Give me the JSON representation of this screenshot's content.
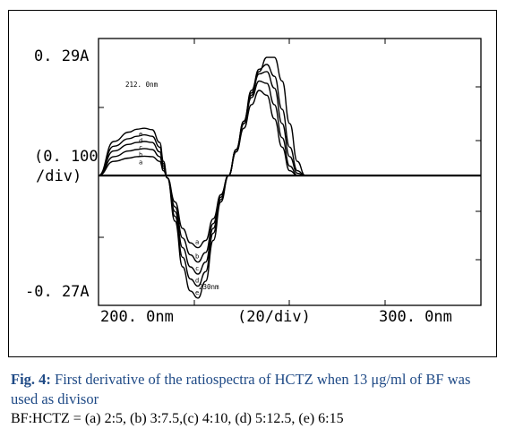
{
  "caption": {
    "fig_label": "Fig. 4:",
    "text": "First derivative of the ratiospectra of HCTZ when 13 μg/ml of BF was used as divisor",
    "ratios_line": "BF:HCTZ = (a) 2:5, (b) 3:7.5,(c) 4:10, (d) 5:12.5, (e) 6:15"
  },
  "chart_data": {
    "type": "line",
    "y_tick_labels": {
      "top": "0. 29A",
      "middle_line1": "(0. 100",
      "middle_line2": "/div)",
      "bottom": "-0. 27A"
    },
    "x_tick_labels": {
      "left": "200. 0nm",
      "middle": "(20/div)",
      "right": "300. 0nm"
    },
    "annotations": [
      "212. 0nm",
      "230nm"
    ],
    "xlim": [
      200,
      300
    ],
    "ylim": [
      -0.27,
      0.29
    ],
    "grid": false,
    "series": [
      {
        "name": "a",
        "label": "a",
        "x": [
          200,
          204,
          208,
          210,
          212,
          214,
          216,
          217,
          218,
          220,
          222,
          224,
          226,
          228,
          230,
          232,
          234,
          236,
          238,
          240,
          242,
          244,
          246,
          248,
          250,
          252,
          254,
          256,
          258,
          260,
          262,
          264,
          300
        ],
        "values": [
          0.0,
          0.03,
          0.037,
          0.04,
          0.041,
          0.04,
          0.03,
          0.01,
          -0.005,
          -0.055,
          -0.11,
          -0.14,
          -0.15,
          -0.135,
          -0.09,
          -0.04,
          0.0,
          0.05,
          0.1,
          0.15,
          0.18,
          0.17,
          0.12,
          0.06,
          0.01,
          0.0,
          0.0,
          0.0,
          0.0,
          0.0,
          0.0,
          0.0,
          0.0
        ]
      },
      {
        "name": "b",
        "label": "b",
        "x": [
          200,
          204,
          208,
          210,
          212,
          214,
          216,
          217,
          218,
          220,
          222,
          224,
          226,
          228,
          230,
          232,
          234,
          236,
          238,
          240,
          242,
          244,
          246,
          248,
          250,
          252,
          254,
          256,
          258,
          260,
          262,
          264,
          300
        ],
        "values": [
          0.0,
          0.04,
          0.052,
          0.055,
          0.057,
          0.055,
          0.04,
          0.015,
          -0.005,
          -0.065,
          -0.13,
          -0.165,
          -0.18,
          -0.16,
          -0.1,
          -0.04,
          0.0,
          0.055,
          0.11,
          0.165,
          0.2,
          0.195,
          0.15,
          0.08,
          0.02,
          0.0,
          0.0,
          0.0,
          0.0,
          0.0,
          0.0,
          0.0,
          0.0
        ]
      },
      {
        "name": "c",
        "label": "c",
        "x": [
          200,
          204,
          208,
          210,
          212,
          214,
          216,
          217,
          218,
          220,
          222,
          224,
          226,
          228,
          230,
          232,
          234,
          236,
          238,
          240,
          242,
          244,
          246,
          248,
          250,
          252,
          254,
          256,
          258,
          260,
          262,
          264,
          300
        ],
        "values": [
          0.0,
          0.052,
          0.066,
          0.07,
          0.072,
          0.07,
          0.05,
          0.02,
          -0.005,
          -0.075,
          -0.15,
          -0.19,
          -0.205,
          -0.18,
          -0.11,
          -0.045,
          0.0,
          0.055,
          0.115,
          0.175,
          0.215,
          0.22,
          0.185,
          0.11,
          0.04,
          0.005,
          0.0,
          0.0,
          0.0,
          0.0,
          0.0,
          0.0,
          0.0
        ]
      },
      {
        "name": "d",
        "label": "d",
        "x": [
          200,
          204,
          208,
          210,
          212,
          214,
          216,
          217,
          218,
          220,
          222,
          224,
          226,
          228,
          230,
          232,
          234,
          236,
          238,
          240,
          242,
          244,
          246,
          248,
          250,
          252,
          254,
          256,
          258,
          260,
          262,
          264,
          300
        ],
        "values": [
          0.0,
          0.062,
          0.078,
          0.083,
          0.086,
          0.083,
          0.06,
          0.025,
          -0.005,
          -0.085,
          -0.17,
          -0.215,
          -0.23,
          -0.2,
          -0.12,
          -0.05,
          0.0,
          0.055,
          0.115,
          0.18,
          0.225,
          0.235,
          0.21,
          0.14,
          0.06,
          0.01,
          0.0,
          0.0,
          0.0,
          0.0,
          0.0,
          0.0,
          0.0
        ]
      },
      {
        "name": "e",
        "label": "e",
        "x": [
          200,
          204,
          208,
          210,
          212,
          214,
          216,
          217,
          218,
          220,
          222,
          224,
          226,
          228,
          230,
          232,
          234,
          236,
          238,
          240,
          242,
          244,
          246,
          248,
          250,
          252,
          254,
          256,
          258,
          260,
          262,
          264,
          300
        ],
        "values": [
          0.0,
          0.072,
          0.092,
          0.098,
          0.1,
          0.097,
          0.07,
          0.03,
          -0.005,
          -0.095,
          -0.19,
          -0.24,
          -0.255,
          -0.22,
          -0.135,
          -0.055,
          0.0,
          0.05,
          0.11,
          0.17,
          0.22,
          0.25,
          0.25,
          0.2,
          0.11,
          0.03,
          0.0,
          0.0,
          0.0,
          0.0,
          0.0,
          0.0,
          0.0
        ]
      }
    ]
  }
}
